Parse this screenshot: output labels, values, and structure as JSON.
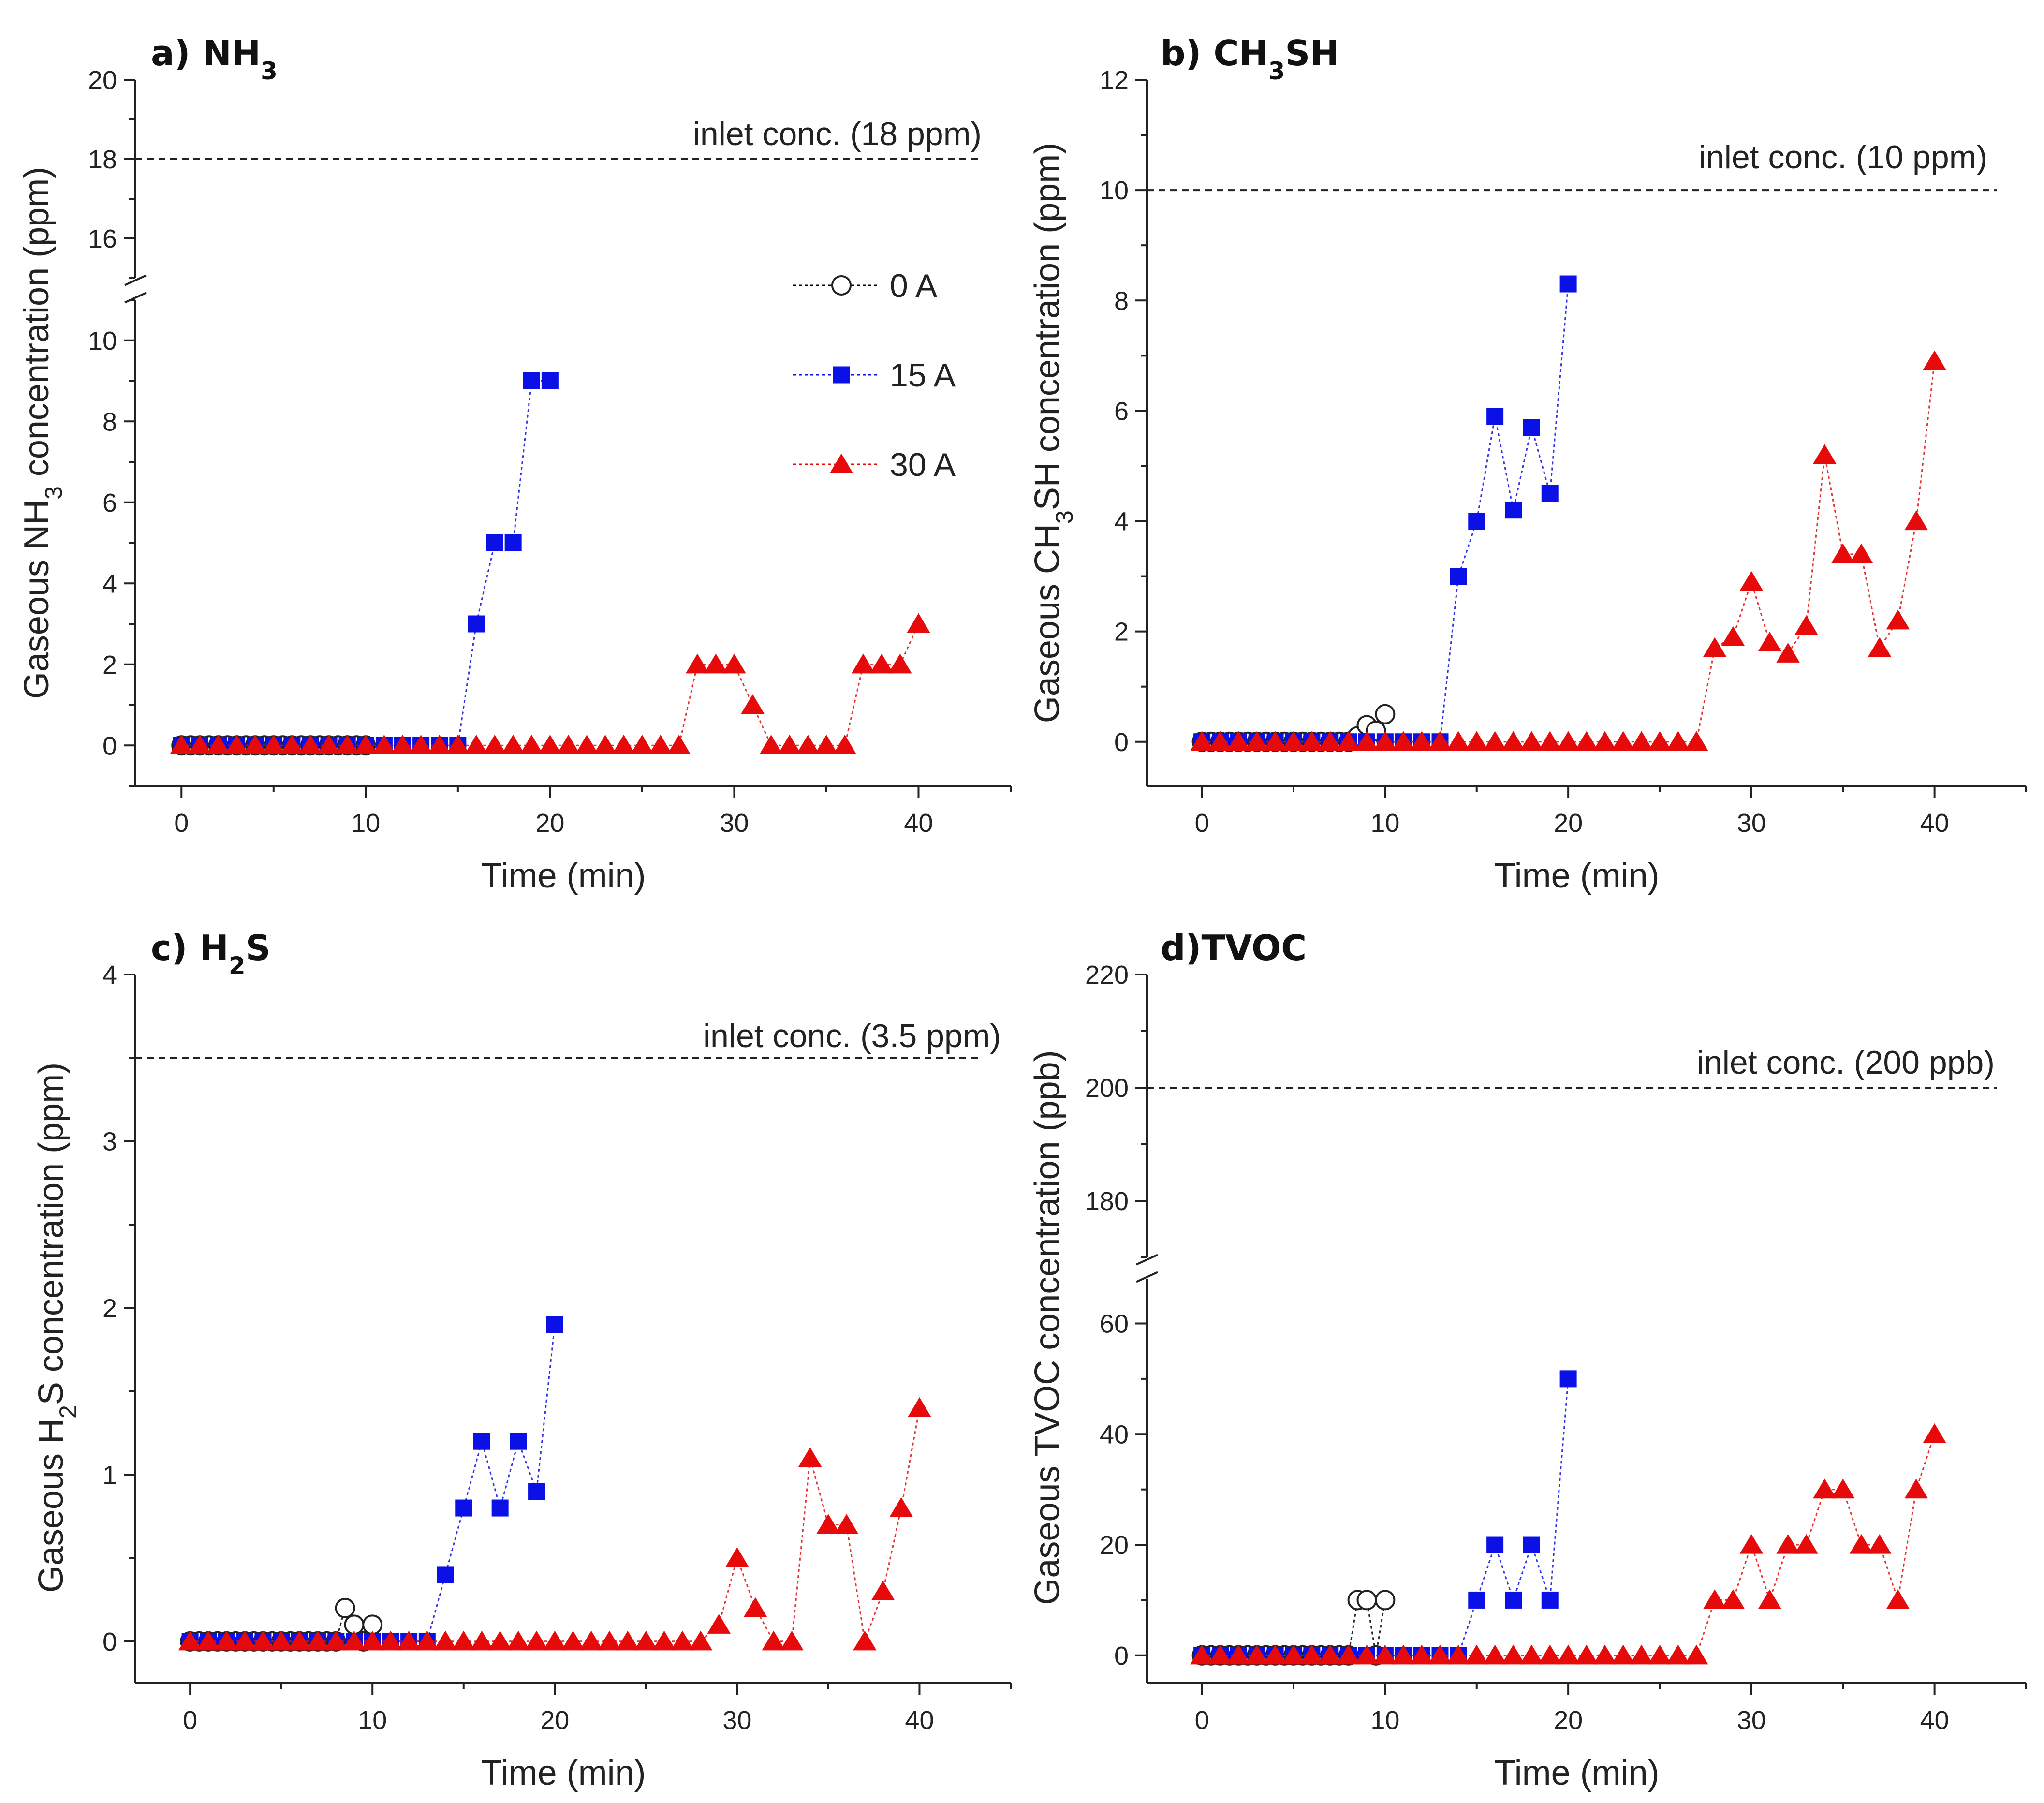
{
  "chart_data": [
    {
      "type": "scatter",
      "panel": "a",
      "title_prefix": "a) ",
      "title_main": "NH",
      "title_sub": "3",
      "title_suffix": "",
      "ylabel_prefix": "Gaseous NH",
      "ylabel_sub": "3",
      "ylabel_suffix": " concentration (ppm)",
      "xlabel": "Time (min)",
      "xlim": [
        -2.5,
        45
      ],
      "xticks": [
        0,
        10,
        20,
        30,
        40
      ],
      "ylim": [
        -1,
        11
      ],
      "yticks": [
        0,
        2,
        4,
        6,
        8,
        10
      ],
      "ybreak": true,
      "ylim_upper": [
        15,
        20
      ],
      "yticks_upper": [
        16,
        18,
        20
      ],
      "inlet": {
        "value": 18,
        "label": "inlet conc. (18 ppm)"
      },
      "legend": true,
      "series": [
        {
          "name": "0 A",
          "marker": "circle",
          "color": "#000000",
          "x": [
            0,
            0.5,
            1,
            1.5,
            2,
            2.5,
            3,
            3.5,
            4,
            4.5,
            5,
            5.5,
            6,
            6.5,
            7,
            7.5,
            8,
            8.5,
            9,
            9.5,
            10
          ],
          "y": [
            0,
            0,
            0,
            0,
            0,
            0,
            0,
            0,
            0,
            0,
            0,
            0,
            0,
            0,
            0,
            0,
            0,
            0,
            0,
            0,
            0
          ]
        },
        {
          "name": "15 A",
          "marker": "square",
          "color": "#0a10e6",
          "x": [
            0,
            1,
            2,
            3,
            4,
            5,
            6,
            7,
            8,
            9,
            10,
            11,
            12,
            13,
            14,
            15,
            16,
            17,
            18,
            19,
            20
          ],
          "y": [
            0,
            0,
            0,
            0,
            0,
            0,
            0,
            0,
            0,
            0,
            0,
            0,
            0,
            0,
            0,
            0,
            3,
            5,
            5,
            9,
            9
          ]
        },
        {
          "name": "30 A",
          "marker": "triangle",
          "color": "#e60a0a",
          "x": [
            0,
            1,
            2,
            3,
            4,
            5,
            6,
            7,
            8,
            9,
            10,
            11,
            12,
            13,
            14,
            15,
            16,
            17,
            18,
            19,
            20,
            21,
            22,
            23,
            24,
            25,
            26,
            27,
            28,
            29,
            30,
            31,
            32,
            33,
            34,
            35,
            36,
            37,
            38,
            39,
            40
          ],
          "y": [
            0,
            0,
            0,
            0,
            0,
            0,
            0,
            0,
            0,
            0,
            0,
            0,
            0,
            0,
            0,
            0,
            0,
            0,
            0,
            0,
            0,
            0,
            0,
            0,
            0,
            0,
            0,
            0,
            2,
            2,
            2,
            1,
            0,
            0,
            0,
            0,
            0,
            2,
            2,
            2,
            3
          ]
        }
      ]
    },
    {
      "type": "scatter",
      "panel": "b",
      "title_prefix": "b) ",
      "title_main": "CH",
      "title_sub": "3",
      "title_suffix": "SH",
      "ylabel_prefix": "Gaseous CH",
      "ylabel_sub": "3",
      "ylabel_suffix": "SH concentration (ppm)",
      "xlabel": "Time (min)",
      "xlim": [
        -3,
        45
      ],
      "xticks": [
        0,
        10,
        20,
        30,
        40
      ],
      "ylim": [
        -0.8,
        12
      ],
      "yticks": [
        0,
        2,
        4,
        6,
        8,
        10,
        12
      ],
      "ybreak": false,
      "inlet": {
        "value": 10,
        "label": "inlet conc. (10 ppm)"
      },
      "legend": false,
      "series": [
        {
          "name": "0 A",
          "marker": "circle",
          "color": "#000000",
          "x": [
            0,
            0.5,
            1,
            1.5,
            2,
            2.5,
            3,
            3.5,
            4,
            4.5,
            5,
            5.5,
            6,
            6.5,
            7,
            7.5,
            8,
            8.5,
            9,
            9.5,
            10
          ],
          "y": [
            0,
            0,
            0,
            0,
            0,
            0,
            0,
            0,
            0,
            0,
            0,
            0,
            0,
            0,
            0,
            0,
            0,
            0.1,
            0.3,
            0.2,
            0.5
          ]
        },
        {
          "name": "15 A",
          "marker": "square",
          "color": "#0a10e6",
          "x": [
            0,
            1,
            2,
            3,
            4,
            5,
            6,
            7,
            8,
            9,
            10,
            11,
            12,
            13,
            14,
            15,
            16,
            17,
            18,
            19,
            20
          ],
          "y": [
            0,
            0,
            0,
            0,
            0,
            0,
            0,
            0,
            0,
            0,
            0,
            0,
            0,
            0,
            3,
            4,
            5.9,
            4.2,
            5.7,
            4.5,
            8.3
          ]
        },
        {
          "name": "30 A",
          "marker": "triangle",
          "color": "#e60a0a",
          "x": [
            0,
            1,
            2,
            3,
            4,
            5,
            6,
            7,
            8,
            9,
            10,
            11,
            12,
            13,
            14,
            15,
            16,
            17,
            18,
            19,
            20,
            21,
            22,
            23,
            24,
            25,
            26,
            27,
            28,
            29,
            30,
            31,
            32,
            33,
            34,
            35,
            36,
            37,
            38,
            39,
            40
          ],
          "y": [
            0,
            0,
            0,
            0,
            0,
            0,
            0,
            0,
            0,
            0,
            0,
            0,
            0,
            0,
            0,
            0,
            0,
            0,
            0,
            0,
            0,
            0,
            0,
            0,
            0,
            0,
            0,
            0,
            1.7,
            1.9,
            2.9,
            1.8,
            1.6,
            2.1,
            5.2,
            3.4,
            3.4,
            1.7,
            2.2,
            4,
            6.9
          ]
        }
      ]
    },
    {
      "type": "scatter",
      "panel": "c",
      "title_prefix": "c) ",
      "title_main": "H",
      "title_sub": "2",
      "title_suffix": "S",
      "ylabel_prefix": "Gaseous H",
      "ylabel_sub": "2",
      "ylabel_suffix": "S concentration (ppm)",
      "xlabel": "Time (min)",
      "xlim": [
        -3,
        45
      ],
      "xticks": [
        0,
        10,
        20,
        30,
        40
      ],
      "ylim": [
        -0.25,
        4
      ],
      "yticks": [
        0,
        1,
        2,
        3,
        4
      ],
      "ybreak": false,
      "inlet": {
        "value": 3.5,
        "label": "inlet conc. (3.5 ppm)"
      },
      "legend": false,
      "series": [
        {
          "name": "0 A",
          "marker": "circle",
          "color": "#000000",
          "x": [
            0,
            0.5,
            1,
            1.5,
            2,
            2.5,
            3,
            3.5,
            4,
            4.5,
            5,
            5.5,
            6,
            6.5,
            7,
            7.5,
            8,
            8.5,
            9,
            9.5,
            10
          ],
          "y": [
            0,
            0,
            0,
            0,
            0,
            0,
            0,
            0,
            0,
            0,
            0,
            0,
            0,
            0,
            0,
            0,
            0,
            0.2,
            0.1,
            0,
            0.1
          ]
        },
        {
          "name": "15 A",
          "marker": "square",
          "color": "#0a10e6",
          "x": [
            0,
            1,
            2,
            3,
            4,
            5,
            6,
            7,
            8,
            9,
            10,
            11,
            12,
            13,
            14,
            15,
            16,
            17,
            18,
            19,
            20
          ],
          "y": [
            0,
            0,
            0,
            0,
            0,
            0,
            0,
            0,
            0,
            0,
            0,
            0,
            0,
            0,
            0.4,
            0.8,
            1.2,
            0.8,
            1.2,
            0.9,
            1.9
          ]
        },
        {
          "name": "30 A",
          "marker": "triangle",
          "color": "#e60a0a",
          "x": [
            0,
            1,
            2,
            3,
            4,
            5,
            6,
            7,
            8,
            9,
            10,
            11,
            12,
            13,
            14,
            15,
            16,
            17,
            18,
            19,
            20,
            21,
            22,
            23,
            24,
            25,
            26,
            27,
            28,
            29,
            30,
            31,
            32,
            33,
            34,
            35,
            36,
            37,
            38,
            39,
            40
          ],
          "y": [
            0,
            0,
            0,
            0,
            0,
            0,
            0,
            0,
            0,
            0,
            0,
            0,
            0,
            0,
            0,
            0,
            0,
            0,
            0,
            0,
            0,
            0,
            0,
            0,
            0,
            0,
            0,
            0,
            0,
            0.1,
            0.5,
            0.2,
            0,
            0,
            1.1,
            0.7,
            0.7,
            0,
            0.3,
            0.8,
            1.4
          ]
        }
      ]
    },
    {
      "type": "scatter",
      "panel": "d",
      "title_prefix": "d)",
      "title_main": "TVOC",
      "title_sub": "",
      "title_suffix": "",
      "ylabel_prefix": "Gaseous TVOC concentration (ppb)",
      "ylabel_sub": "",
      "ylabel_suffix": "",
      "xlabel": "Time (min)",
      "xlim": [
        -3,
        45
      ],
      "xticks": [
        0,
        10,
        20,
        30,
        40
      ],
      "ylim": [
        -5,
        68
      ],
      "yticks": [
        0,
        20,
        40,
        60
      ],
      "ybreak": true,
      "ylim_upper": [
        170,
        220
      ],
      "yticks_upper": [
        180,
        200,
        220
      ],
      "inlet": {
        "value": 200,
        "label": "inlet conc. (200 ppb)"
      },
      "legend": false,
      "series": [
        {
          "name": "0 A",
          "marker": "circle",
          "color": "#000000",
          "x": [
            0,
            0.5,
            1,
            1.5,
            2,
            2.5,
            3,
            3.5,
            4,
            4.5,
            5,
            5.5,
            6,
            6.5,
            7,
            7.5,
            8,
            8.5,
            9,
            9.5,
            10
          ],
          "y": [
            0,
            0,
            0,
            0,
            0,
            0,
            0,
            0,
            0,
            0,
            0,
            0,
            0,
            0,
            0,
            0,
            0,
            10,
            10,
            0,
            10
          ]
        },
        {
          "name": "15 A",
          "marker": "square",
          "color": "#0a10e6",
          "x": [
            0,
            1,
            2,
            3,
            4,
            5,
            6,
            7,
            8,
            9,
            10,
            11,
            12,
            13,
            14,
            15,
            16,
            17,
            18,
            19,
            20
          ],
          "y": [
            0,
            0,
            0,
            0,
            0,
            0,
            0,
            0,
            0,
            0,
            0,
            0,
            0,
            0,
            0,
            10,
            20,
            10,
            20,
            10,
            50
          ]
        },
        {
          "name": "30 A",
          "marker": "triangle",
          "color": "#e60a0a",
          "x": [
            0,
            1,
            2,
            3,
            4,
            5,
            6,
            7,
            8,
            9,
            10,
            11,
            12,
            13,
            14,
            15,
            16,
            17,
            18,
            19,
            20,
            21,
            22,
            23,
            24,
            25,
            26,
            27,
            28,
            29,
            30,
            31,
            32,
            33,
            34,
            35,
            36,
            37,
            38,
            39,
            40
          ],
          "y": [
            0,
            0,
            0,
            0,
            0,
            0,
            0,
            0,
            0,
            0,
            0,
            0,
            0,
            0,
            0,
            0,
            0,
            0,
            0,
            0,
            0,
            0,
            0,
            0,
            0,
            0,
            0,
            0,
            10,
            10,
            20,
            10,
            20,
            20,
            30,
            30,
            20,
            20,
            10,
            30,
            40
          ]
        }
      ]
    }
  ]
}
